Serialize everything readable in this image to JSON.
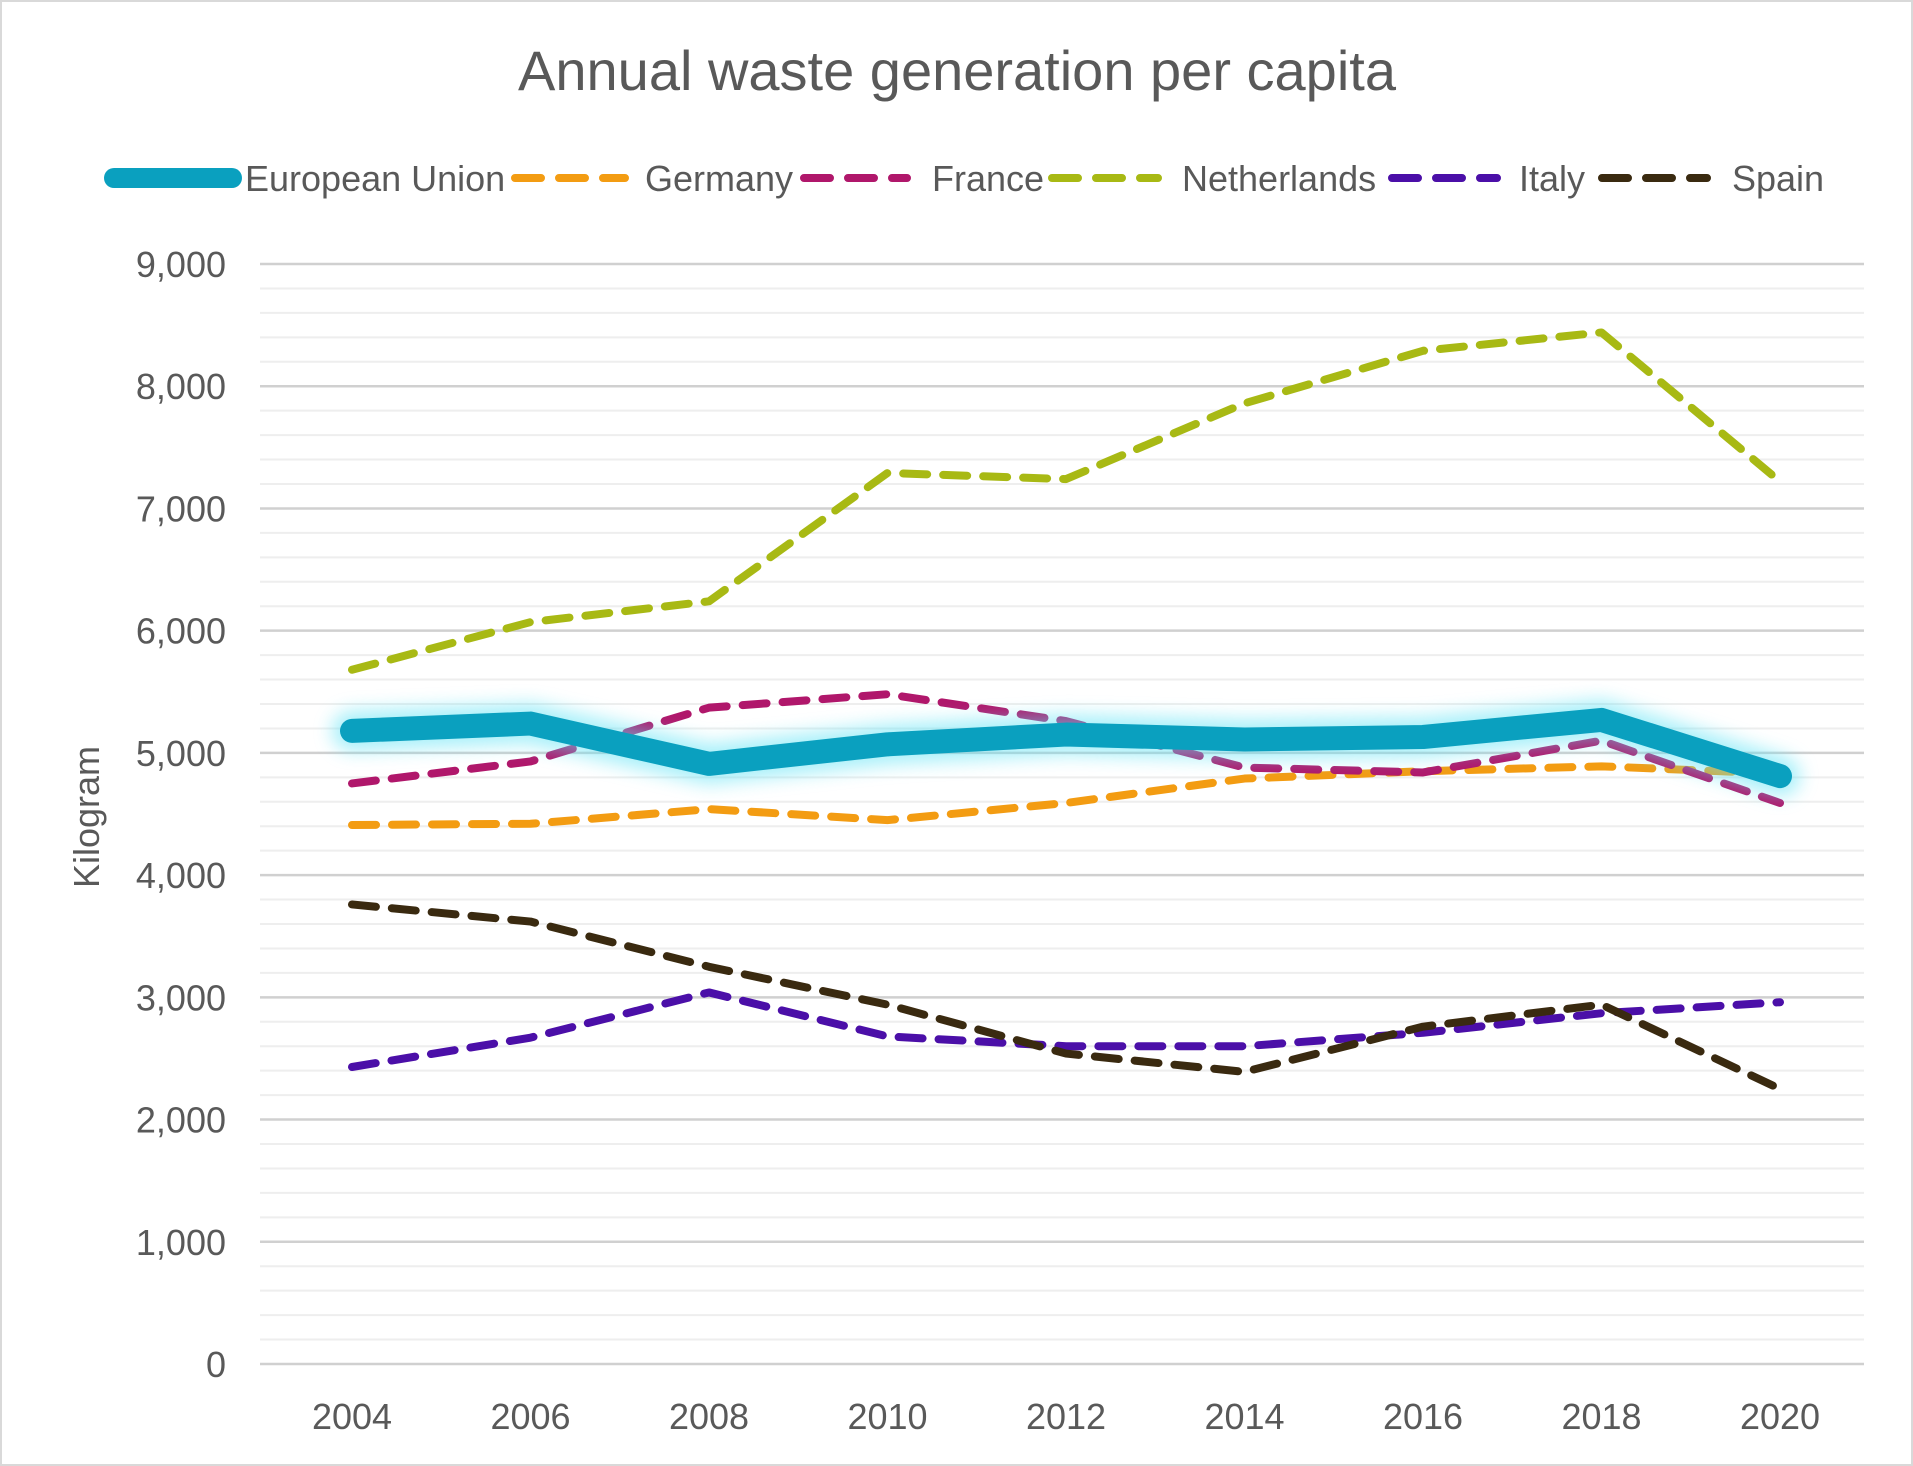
{
  "chart_data": {
    "type": "line",
    "title": "Annual waste generation per capita",
    "xlabel": "",
    "ylabel": "Kilogram",
    "ylim": [
      0,
      9000
    ],
    "yticks": [
      0,
      1000,
      2000,
      3000,
      4000,
      5000,
      6000,
      7000,
      8000,
      9000
    ],
    "ytick_labels": [
      "0",
      "1,000",
      "2,000",
      "3,000",
      "4,000",
      "5,000",
      "6,000",
      "7,000",
      "8,000",
      "9,000"
    ],
    "categories": [
      "2004",
      "2006",
      "2008",
      "2010",
      "2012",
      "2014",
      "2016",
      "2018",
      "2020"
    ],
    "grid": true,
    "legend_position": "top",
    "series": [
      {
        "name": "European Union",
        "color": "#0aa0bf",
        "style": "solid",
        "values": [
          5180,
          5240,
          4910,
          5070,
          5150,
          5110,
          5130,
          5270,
          4810
        ]
      },
      {
        "name": "Germany",
        "color": "#f39c12",
        "style": "dashed",
        "values": [
          4410,
          4420,
          4540,
          4450,
          4590,
          4790,
          4850,
          4890,
          4830
        ]
      },
      {
        "name": "France",
        "color": "#b0176b",
        "style": "dashed",
        "values": [
          4750,
          4930,
          5370,
          5480,
          5260,
          4880,
          4840,
          5100,
          4590
        ]
      },
      {
        "name": "Netherlands",
        "color": "#a8b914",
        "style": "dashed",
        "values": [
          5680,
          6070,
          6240,
          7290,
          7240,
          7860,
          8290,
          8440,
          7220
        ]
      },
      {
        "name": "Italy",
        "color": "#4b0fa8",
        "style": "dashed",
        "values": [
          2430,
          2670,
          3040,
          2680,
          2600,
          2600,
          2710,
          2870,
          2960
        ]
      },
      {
        "name": "Spain",
        "color": "#3a2a10",
        "style": "dashed",
        "values": [
          3760,
          3620,
          3250,
          2940,
          2540,
          2390,
          2760,
          2940,
          2250
        ]
      }
    ]
  }
}
